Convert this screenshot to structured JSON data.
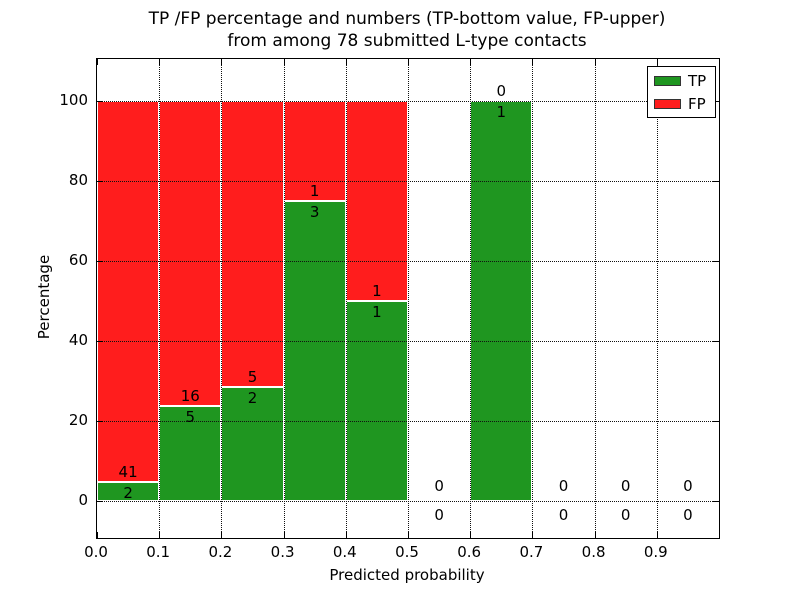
{
  "chart_data": {
    "type": "bar",
    "stacked": true,
    "title_line1": "TP /FP percentage and numbers (TP-bottom value, FP-upper)",
    "title_line2": "from among 78 submitted L-type contacts",
    "xlabel": "Predicted probability",
    "ylabel": "Percentage",
    "bin_width": 0.1,
    "bins": [
      {
        "x_start": 0.0,
        "tp": 2,
        "fp": 41
      },
      {
        "x_start": 0.1,
        "tp": 5,
        "fp": 16
      },
      {
        "x_start": 0.2,
        "tp": 2,
        "fp": 5
      },
      {
        "x_start": 0.3,
        "tp": 3,
        "fp": 1
      },
      {
        "x_start": 0.4,
        "tp": 1,
        "fp": 1
      },
      {
        "x_start": 0.5,
        "tp": 0,
        "fp": 0
      },
      {
        "x_start": 0.6,
        "tp": 1,
        "fp": 0
      },
      {
        "x_start": 0.7,
        "tp": 0,
        "fp": 0
      },
      {
        "x_start": 0.8,
        "tp": 0,
        "fp": 0
      },
      {
        "x_start": 0.9,
        "tp": 0,
        "fp": 0
      }
    ],
    "tp_percent_by_bin": [
      4.65,
      23.81,
      28.57,
      75.0,
      50.0,
      null,
      100.0,
      null,
      null,
      null
    ],
    "total_contacts": 78,
    "xticks": [
      "0.0",
      "0.1",
      "0.2",
      "0.3",
      "0.4",
      "0.5",
      "0.6",
      "0.7",
      "0.8",
      "0.9"
    ],
    "yticks": [
      "0",
      "20",
      "40",
      "60",
      "80",
      "100"
    ],
    "xlim": [
      0.0,
      1.0
    ],
    "ylim": [
      -10,
      110
    ],
    "grid": "dotted",
    "grid_on_top": true,
    "legend": {
      "position": "upper-right",
      "entries": [
        {
          "label": "TP",
          "color": "#1f9620"
        },
        {
          "label": "FP",
          "color": "#ff1d1d"
        }
      ]
    }
  }
}
